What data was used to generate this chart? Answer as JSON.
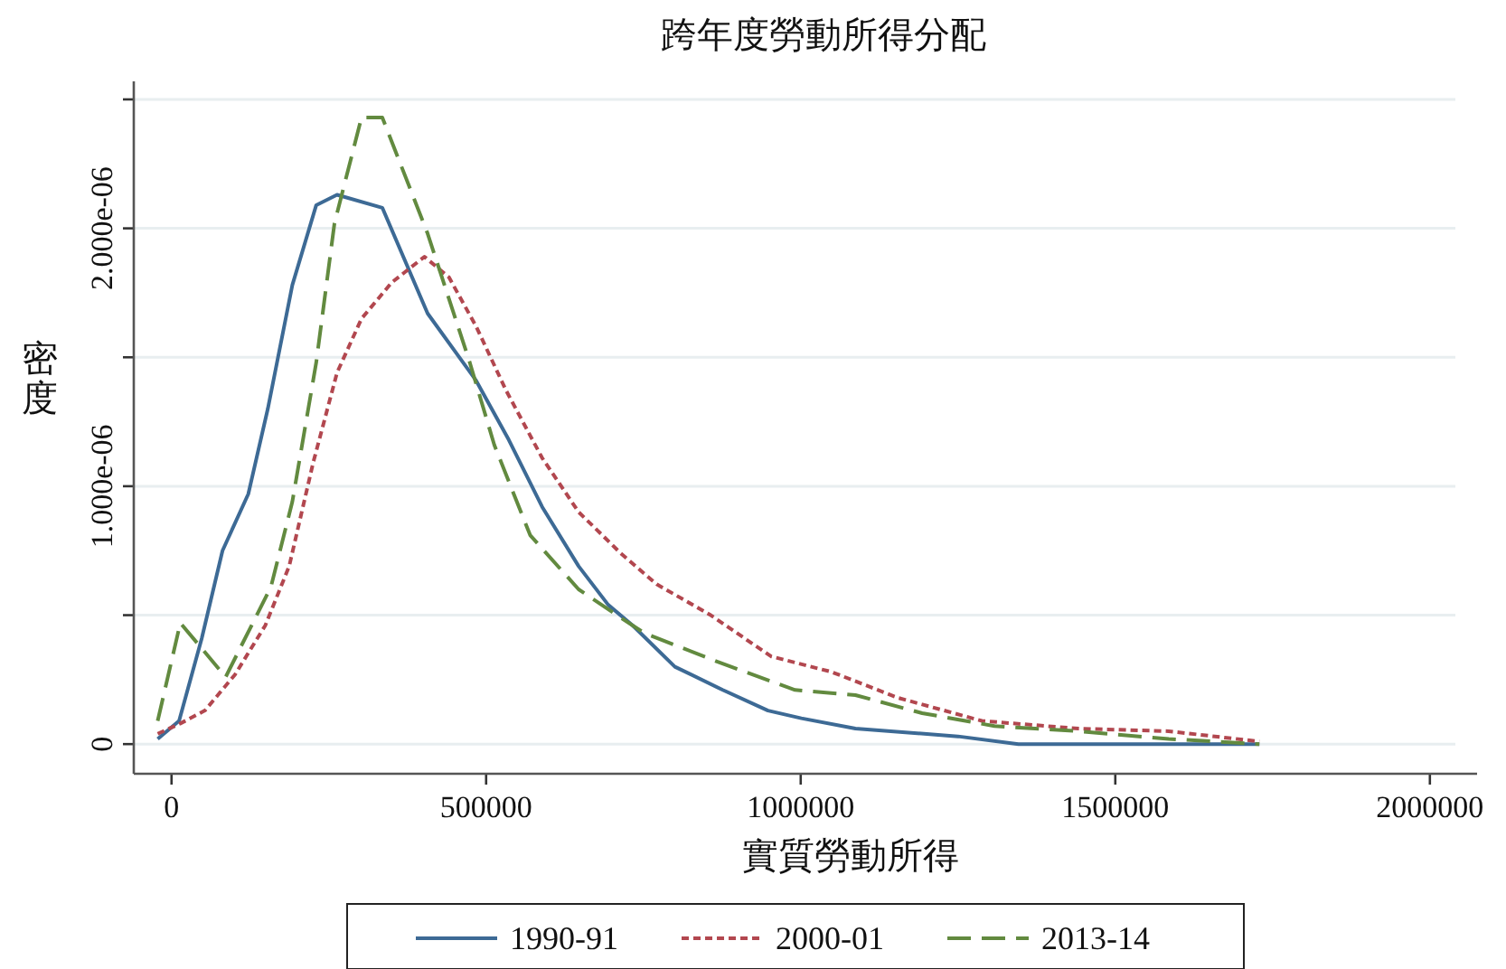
{
  "chart_data": {
    "type": "line",
    "title": "跨年度勞動所得分配",
    "xlabel": "實質勞動所得",
    "ylabel": "密度",
    "xlim": [
      -60000,
      2075000
    ],
    "xticks": [
      0,
      500000,
      1000000,
      1500000,
      2000000
    ],
    "ylim": [
      -1.15e-07,
      2.57e-06
    ],
    "yticks": [
      {
        "value": 0,
        "label": "0"
      },
      {
        "value": 5e-07,
        "label": null
      },
      {
        "value": 1e-06,
        "label": "1.000e-06"
      },
      {
        "value": 1.5e-06,
        "label": null
      },
      {
        "value": 2e-06,
        "label": "2.000e-06"
      },
      {
        "value": 2.5e-06,
        "label": null
      }
    ],
    "grid": "y",
    "legend": "bottom",
    "series": [
      {
        "name": "1990-91",
        "color": "#3d6a95",
        "line_style": "solid",
        "x": [
          -22000,
          12000,
          48000,
          81000,
          122000,
          153000,
          192000,
          230000,
          263000,
          335000,
          407000,
          484000,
          536000,
          589000,
          647000,
          694000,
          733000,
          800000,
          876000,
          948000,
          1001000,
          1087000,
          1250000,
          1346000,
          1729000
        ],
        "values": [
          2e-08,
          9e-08,
          4.1e-07,
          7.5e-07,
          9.7e-07,
          1.3e-06,
          1.78e-06,
          2.09e-06,
          2.13e-06,
          2.08e-06,
          1.67e-06,
          1.41e-06,
          1.18e-06,
          9.2e-07,
          6.9e-07,
          5.4e-07,
          4.6e-07,
          3e-07,
          2.1e-07,
          1.3e-07,
          1e-07,
          6e-08,
          3e-08,
          0,
          0
        ]
      },
      {
        "name": "2000-01",
        "color": "#b2474f",
        "line_style": "dotted",
        "x": [
          -22000,
          14000,
          53000,
          101000,
          149000,
          187000,
          225000,
          263000,
          302000,
          350000,
          402000,
          441000,
          484000,
          532000,
          589000,
          647000,
          714000,
          771000,
          857000,
          953000,
          1049000,
          1154000,
          1288000,
          1442000,
          1585000,
          1729000
        ],
        "values": [
          4e-08,
          8e-08,
          1.3e-07,
          2.7e-07,
          4.6e-07,
          6.9e-07,
          1.09e-06,
          1.44e-06,
          1.65e-06,
          1.79e-06,
          1.89e-06,
          1.81e-06,
          1.62e-06,
          1.37e-06,
          1.11e-06,
          9e-07,
          7.4e-07,
          6.2e-07,
          5e-07,
          3.4e-07,
          2.8e-07,
          1.8e-07,
          9e-08,
          6e-08,
          5e-08,
          1e-08
        ]
      },
      {
        "name": "2013-14",
        "color": "#628a3f",
        "line_style": "dashed",
        "x": [
          -22000,
          14000,
          86000,
          158000,
          192000,
          230000,
          259000,
          302000,
          335000,
          407000,
          474000,
          513000,
          570000,
          647000,
          714000,
          752000,
          867000,
          991000,
          1087000,
          1193000,
          1308000,
          1442000,
          1585000,
          1729000
        ],
        "values": [
          9e-08,
          4.7e-07,
          2.6e-07,
          6.1e-07,
          9.4e-07,
          1.48e-06,
          2.02e-06,
          2.43e-06,
          2.43e-06,
          1.98e-06,
          1.48e-06,
          1.16e-06,
          8.1e-07,
          6e-07,
          4.9e-07,
          4.3e-07,
          3.2e-07,
          2.1e-07,
          1.9e-07,
          1.2e-07,
          7e-08,
          5e-08,
          2e-08,
          0
        ]
      }
    ]
  }
}
